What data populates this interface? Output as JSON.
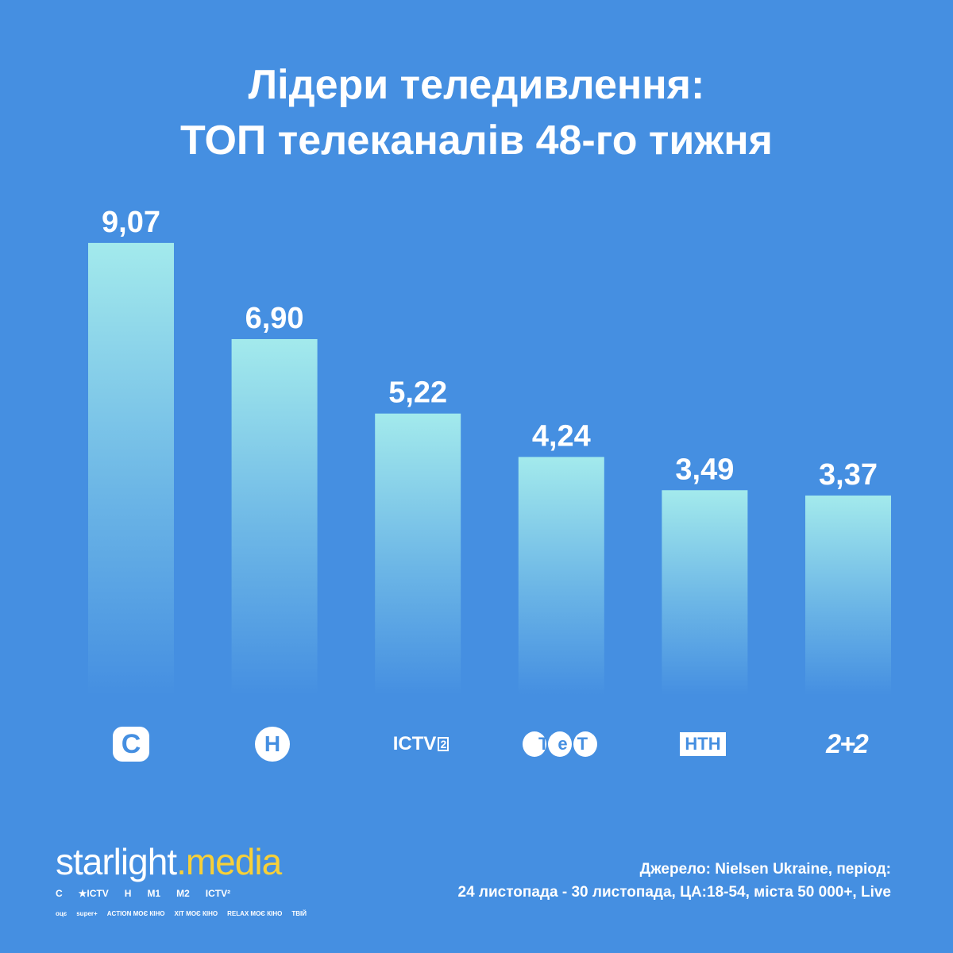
{
  "title": {
    "line1": "Лідери теледивлення:",
    "line2": "ТОП телеканалів 48-го тижня"
  },
  "chart_data": {
    "type": "bar",
    "categories": [
      "СТБ",
      "Новий канал",
      "ICTV2",
      "ТЕТ",
      "НТН",
      "2+2"
    ],
    "values": [
      9.07,
      6.9,
      5.22,
      4.24,
      3.49,
      3.37
    ],
    "value_labels": [
      "9,07",
      "6,90",
      "5,22",
      "4,24",
      "3,49",
      "3,37"
    ],
    "title": "ТОП телеканалів 48-го тижня",
    "xlabel": "",
    "ylabel": "",
    "grid": false
  },
  "logos": {
    "stb": "С",
    "novy": "Н",
    "ictv2": "ICTV",
    "ictv2_sup": "2",
    "tet": "ТеТ",
    "ntn": "НТН",
    "plus": "2+2"
  },
  "brand": {
    "part1": "starlight",
    "part2": ".media"
  },
  "brand_channels_row1": [
    "С",
    "★ICTV",
    "Н",
    "М1",
    "М2",
    "ICTV²"
  ],
  "brand_channels_row2": [
    "оцє",
    "super+",
    "ACTION МОЄ КІНО",
    "ХІТ МОЄ КІНО",
    "RELAX МОЄ КІНО",
    "ТВІЙ"
  ],
  "source": {
    "line1": "Джерело: Nielsen Ukraine, період:",
    "line2": "24 листопада - 30 листопада, ЦА:18-54, міста 50 000+, Live"
  },
  "colors": {
    "background": "#458fe1",
    "bar_top": "#a3eaec",
    "accent": "#f7d038"
  }
}
